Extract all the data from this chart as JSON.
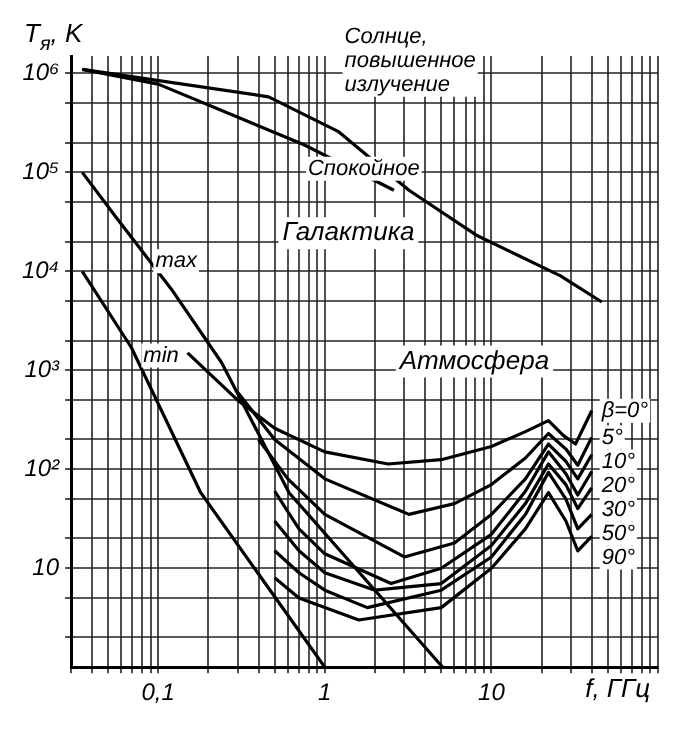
{
  "chart_data": {
    "type": "line",
    "ylabel": "T$_{я}$, K",
    "xlabel": "f, ГГц",
    "annotations": [
      "Галактика",
      "Атмосфера"
    ],
    "xlim": [
      0.03,
      100
    ],
    "ylim": [
      1,
      1500000
    ],
    "grid": true,
    "log": "xy",
    "xticks": [
      {
        "value": 0.03,
        "label": null
      },
      {
        "value": 0.04,
        "label": null
      },
      {
        "value": 0.05,
        "label": null
      },
      {
        "value": 0.06,
        "label": null
      },
      {
        "value": 0.07,
        "label": null
      },
      {
        "value": 0.08,
        "label": null
      },
      {
        "value": 0.09,
        "label": null
      },
      {
        "value": 0.1,
        "label": "0,1"
      },
      {
        "value": 0.2,
        "label": null
      },
      {
        "value": 0.3,
        "label": null
      },
      {
        "value": 0.4,
        "label": null
      },
      {
        "value": 0.5,
        "label": null
      },
      {
        "value": 0.6,
        "label": null
      },
      {
        "value": 0.7,
        "label": null
      },
      {
        "value": 0.8,
        "label": null
      },
      {
        "value": 0.9,
        "label": null
      },
      1,
      {
        "value": 2,
        "label": null
      },
      {
        "value": 3,
        "label": null
      },
      {
        "value": 4,
        "label": null
      },
      {
        "value": 5,
        "label": null
      },
      {
        "value": 6,
        "label": null
      },
      {
        "value": 7,
        "label": null
      },
      {
        "value": 8,
        "label": null
      },
      {
        "value": 9,
        "label": null
      },
      10,
      {
        "value": 20,
        "label": null
      },
      {
        "value": 30,
        "label": null
      },
      {
        "value": 40,
        "label": null
      },
      {
        "value": 50,
        "label": null
      },
      {
        "value": 60,
        "label": null
      },
      {
        "value": 70,
        "label": null
      },
      {
        "value": 80,
        "label": null
      },
      {
        "value": 90,
        "label": null
      },
      {
        "value": 100,
        "label": null
      }
    ],
    "yticks": [
      {
        "value": 2,
        "label": null
      },
      {
        "value": 5,
        "label": null
      },
      10,
      {
        "value": 20,
        "label": null
      },
      {
        "value": 50,
        "label": null
      },
      {
        "value": 100,
        "label": "10²"
      },
      {
        "value": 200,
        "label": null
      },
      {
        "value": 500,
        "label": null
      },
      {
        "value": 1000,
        "label": "10³"
      },
      {
        "value": 2000,
        "label": null
      },
      {
        "value": 5000,
        "label": null
      },
      {
        "value": 10000,
        "label": "10⁴"
      },
      {
        "value": 20000,
        "label": null
      },
      {
        "value": 50000,
        "label": null
      },
      {
        "value": 100000,
        "label": "10⁵"
      },
      {
        "value": 200000,
        "label": null
      },
      {
        "value": 500000,
        "label": null
      },
      {
        "value": 1000000,
        "label": "10⁶"
      }
    ],
    "series": [
      {
        "name": "Солнце, повышенное излучение",
        "color": "#000000",
        "x": [
          0.035,
          0.46,
          1.2,
          3.2,
          8.2,
          26,
          46
        ],
        "values": [
          1100000,
          580000,
          260000,
          66000,
          23000,
          9000,
          4900
        ]
      },
      {
        "name": "Спокойное",
        "color": "#000000",
        "x": [
          0.035,
          0.1,
          0.75,
          2.6
        ],
        "values": [
          1100000,
          780000,
          190000,
          66000
        ]
      },
      {
        "name": "max",
        "color": "#000000",
        "x": [
          0.035,
          0.056,
          0.12,
          0.24,
          0.61,
          5.1
        ],
        "values": [
          100000,
          35000,
          6600,
          1200,
          58,
          1
        ]
      },
      {
        "name": "min",
        "color": "#000000",
        "x": [
          0.035,
          0.069,
          0.18,
          1
        ],
        "values": [
          10000,
          1700,
          58,
          1
        ]
      },
      {
        "name": "β=0°",
        "color": "#000000",
        "x": [
          0.15,
          0.3,
          0.5,
          1,
          2.4,
          5,
          10,
          16,
          22,
          27,
          32,
          40
        ],
        "values": [
          1500,
          500,
          260,
          150,
          113,
          125,
          170,
          240,
          310,
          220,
          180,
          390
        ]
      },
      {
        "name": "5°",
        "color": "#000000",
        "x": [
          0.3,
          0.5,
          1,
          3.2,
          6,
          10,
          16,
          22,
          28,
          33,
          40
        ],
        "values": [
          600,
          200,
          80,
          35,
          45,
          70,
          130,
          230,
          160,
          110,
          210
        ]
      },
      {
        "name": "10°",
        "color": "#000000",
        "x": [
          0.4,
          0.6,
          1,
          3,
          6,
          10,
          16,
          22,
          28,
          33,
          40
        ],
        "values": [
          200,
          80,
          35,
          13,
          18,
          35,
          80,
          180,
          120,
          80,
          140
        ]
      },
      {
        "name": "20°",
        "color": "#000000",
        "x": [
          0.5,
          0.7,
          1,
          2.5,
          5,
          10,
          16,
          22,
          28,
          33,
          40
        ],
        "values": [
          60,
          25,
          14,
          7,
          10,
          22,
          60,
          150,
          90,
          55,
          95
        ]
      },
      {
        "name": "30°",
        "color": "#000000",
        "x": [
          0.5,
          0.7,
          1,
          2,
          5,
          10,
          16,
          22,
          28,
          33,
          40
        ],
        "values": [
          30,
          15,
          9,
          6,
          7,
          17,
          45,
          113,
          70,
          40,
          65
        ]
      },
      {
        "name": "50°",
        "color": "#000000",
        "x": [
          0.5,
          0.7,
          1,
          1.8,
          5,
          10,
          16,
          22,
          28,
          33,
          40
        ],
        "values": [
          15,
          9,
          6,
          4,
          6,
          13,
          35,
          93,
          50,
          25,
          35
        ]
      },
      {
        "name": "90°",
        "color": "#000000",
        "x": [
          0.5,
          0.7,
          1,
          1.6,
          5,
          10,
          16,
          22,
          28,
          33,
          40
        ],
        "values": [
          8,
          5,
          4,
          3,
          4,
          10,
          25,
          58,
          30,
          15,
          21
        ]
      }
    ]
  }
}
